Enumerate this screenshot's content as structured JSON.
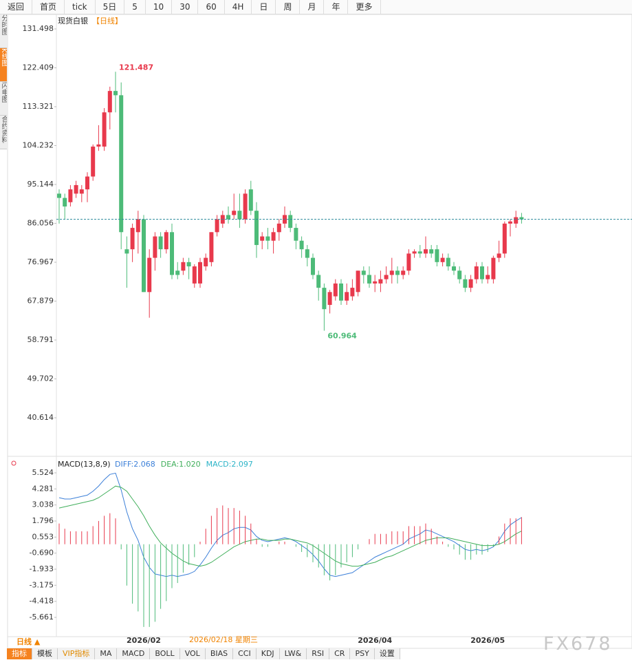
{
  "toolbar": [
    "返回",
    "首页",
    "tick",
    "5日",
    "5",
    "10",
    "30",
    "60",
    "4H",
    "日",
    "周",
    "月",
    "年",
    "更多"
  ],
  "side_tabs": [
    "分时图",
    "K线图",
    "闪电图",
    "合约资料"
  ],
  "chart_data": [
    {
      "type": "candlestick",
      "title": "现货白银",
      "subtitle": "【日线】",
      "categories": [
        null,
        null,
        null,
        null,
        null,
        null,
        null,
        null,
        null,
        null,
        null,
        null,
        null,
        null,
        null,
        "2026/02",
        null,
        null,
        null,
        null,
        null,
        null,
        null,
        null,
        null,
        null,
        null,
        null,
        null,
        null,
        null,
        null,
        null,
        null,
        null,
        null,
        null,
        null,
        null,
        null,
        null,
        null,
        null,
        null,
        null,
        null,
        null,
        null,
        null,
        null,
        null,
        null,
        null,
        null,
        null,
        null,
        "2026/04",
        null,
        null,
        null,
        null,
        null,
        null,
        null,
        null,
        null,
        null,
        null,
        null,
        null,
        null,
        null,
        null,
        null,
        null,
        null,
        "2026/05",
        null,
        null,
        null,
        null,
        null,
        null
      ],
      "open": [
        93,
        92,
        91,
        93,
        93,
        94,
        97,
        104,
        104,
        112,
        117,
        116,
        80,
        80,
        84,
        87,
        70,
        78,
        83,
        80,
        84,
        75,
        75,
        77,
        72,
        72,
        76,
        77,
        84,
        86,
        88,
        88,
        89,
        87,
        94,
        89,
        82,
        83,
        82,
        84,
        86,
        88,
        85,
        82,
        80,
        78,
        74,
        71,
        67,
        69,
        72,
        68,
        69,
        70,
        75,
        74,
        72,
        72,
        73,
        74,
        75,
        74,
        75,
        79,
        79.5,
        79,
        80,
        80,
        77,
        78,
        76,
        75,
        73,
        71,
        73,
        76,
        73,
        73,
        78,
        79,
        86,
        86,
        87.5
      ],
      "high": [
        94,
        93,
        95,
        96,
        95,
        98,
        104.5,
        109,
        113,
        118,
        121.487,
        119,
        83,
        86,
        89,
        88,
        80,
        84,
        84,
        84.5,
        86,
        77,
        78,
        78,
        76.5,
        78,
        79,
        84,
        88,
        89,
        90,
        93,
        93,
        94,
        96,
        91,
        84,
        85,
        85,
        87,
        90,
        89,
        86,
        83,
        81,
        79,
        75,
        72,
        70.5,
        73,
        73,
        72,
        73,
        75,
        76,
        76,
        74,
        75,
        76,
        78,
        76,
        76,
        80,
        80,
        81,
        83,
        81,
        81,
        79,
        79,
        77,
        76,
        74,
        74,
        77,
        77,
        76,
        78.5,
        82,
        86.5,
        87,
        89,
        88.5
      ],
      "low": [
        86,
        87,
        90,
        92,
        91,
        91,
        96,
        103,
        103,
        108,
        112,
        80,
        71,
        77,
        79,
        70,
        64,
        75,
        78,
        79,
        73,
        73,
        74,
        73,
        71,
        71,
        75,
        76,
        83,
        85,
        86,
        87,
        85,
        86,
        88,
        78,
        80,
        80,
        79,
        82,
        85,
        84,
        80,
        78,
        76,
        73,
        68,
        60.964,
        65,
        68,
        67,
        67,
        68,
        69,
        72,
        71,
        70,
        70,
        72,
        72,
        72,
        73,
        74,
        78,
        78,
        78,
        78,
        76,
        76,
        75,
        74,
        72,
        70,
        70,
        72,
        72,
        72,
        72,
        77,
        78,
        83,
        85,
        86
      ],
      "close": [
        92,
        90,
        94,
        95,
        94,
        97,
        104,
        104.5,
        112,
        117,
        116,
        84,
        79,
        85,
        87,
        70,
        78,
        83,
        80,
        84,
        74,
        74,
        77,
        76,
        76,
        77,
        78,
        84,
        87,
        88,
        87,
        89,
        87,
        93,
        89,
        81,
        83,
        82,
        84,
        86,
        88,
        85,
        82,
        80,
        78,
        74,
        71,
        66,
        70,
        72,
        68,
        70,
        71,
        75,
        74,
        72,
        72.5,
        73,
        74,
        75,
        74,
        75,
        79,
        79.5,
        79,
        80,
        79,
        77,
        78,
        76,
        75,
        73,
        71,
        73,
        76,
        73,
        74,
        78,
        79,
        86,
        86.5,
        87.5,
        87
      ],
      "up_color": "#e8394c",
      "down_color": "#4dbb78",
      "ylim": [
        32.09,
        135.04
      ],
      "yticks": [
        131.498,
        122.409,
        113.321,
        104.232,
        95.144,
        86.056,
        76.967,
        67.879,
        58.791,
        49.702,
        40.614
      ]
    },
    {
      "type": "macd",
      "title": "MACD(13,8,9)",
      "series": [
        {
          "legend": "DIFF:2.068",
          "color": "#3b7fd8",
          "values": [
            3.6,
            3.5,
            3.5,
            3.6,
            3.7,
            3.8,
            4.1,
            4.5,
            5.0,
            5.4,
            5.5,
            4.2,
            2.5,
            1.2,
            0.3,
            -1.0,
            -1.8,
            -2.3,
            -2.4,
            -2.5,
            -2.4,
            -2.5,
            -2.4,
            -2.3,
            -2.1,
            -1.6,
            -1.0,
            -0.3,
            0.3,
            0.7,
            0.9,
            1.2,
            1.3,
            1.3,
            1.1,
            0.6,
            0.3,
            0.2,
            0.3,
            0.4,
            0.5,
            0.4,
            0.2,
            -0.1,
            -0.4,
            -0.8,
            -1.3,
            -1.9,
            -2.4,
            -2.5,
            -2.4,
            -2.3,
            -2.2,
            -1.9,
            -1.6,
            -1.3,
            -1.0,
            -0.8,
            -0.6,
            -0.4,
            -0.2,
            0.0,
            0.4,
            0.6,
            0.8,
            1.1,
            1.0,
            0.8,
            0.6,
            0.4,
            0.2,
            -0.1,
            -0.4,
            -0.5,
            -0.4,
            -0.5,
            -0.4,
            -0.2,
            0.3,
            1.0,
            1.5,
            1.8,
            2.068
          ]
        },
        {
          "legend": "DEA:1.020",
          "color": "#3fae5a",
          "values": [
            2.8,
            2.9,
            3.0,
            3.1,
            3.2,
            3.3,
            3.4,
            3.6,
            3.9,
            4.2,
            4.5,
            4.4,
            4.1,
            3.5,
            2.9,
            2.2,
            1.4,
            0.7,
            0.1,
            -0.3,
            -0.7,
            -1.0,
            -1.3,
            -1.5,
            -1.6,
            -1.7,
            -1.6,
            -1.4,
            -1.1,
            -0.8,
            -0.5,
            -0.2,
            0.0,
            0.2,
            0.3,
            0.4,
            0.4,
            0.3,
            0.3,
            0.3,
            0.4,
            0.4,
            0.3,
            0.2,
            0.1,
            -0.1,
            -0.4,
            -0.7,
            -1.0,
            -1.3,
            -1.5,
            -1.6,
            -1.7,
            -1.7,
            -1.6,
            -1.5,
            -1.4,
            -1.2,
            -1.0,
            -0.9,
            -0.7,
            -0.5,
            -0.3,
            -0.1,
            0.1,
            0.3,
            0.4,
            0.5,
            0.5,
            0.5,
            0.4,
            0.3,
            0.2,
            0.1,
            0.0,
            -0.1,
            -0.1,
            -0.1,
            0.0,
            0.2,
            0.5,
            0.8,
            1.02
          ]
        },
        {
          "legend": "MACD:2.097",
          "color": "#2bb3c7",
          "up_color": "#e8394c",
          "down_color": "#4dbb78",
          "histogram": true,
          "values": [
            1.6,
            1.2,
            1.0,
            1.0,
            1.0,
            1.0,
            1.4,
            1.8,
            2.2,
            2.4,
            2.0,
            -0.4,
            -3.2,
            -4.6,
            -5.2,
            -6.4,
            -6.4,
            -6.0,
            -5.0,
            -4.4,
            -3.4,
            -3.0,
            -2.2,
            -1.6,
            -1.0,
            0.2,
            1.2,
            2.2,
            2.8,
            3.0,
            2.8,
            2.8,
            2.6,
            2.2,
            1.6,
            0.4,
            -0.2,
            -0.2,
            0.0,
            0.2,
            0.2,
            0.0,
            -0.2,
            -0.6,
            -1.0,
            -1.4,
            -1.8,
            -2.4,
            -2.8,
            -2.4,
            -1.8,
            -1.4,
            -1.0,
            -0.4,
            0.0,
            0.4,
            0.8,
            0.8,
            0.8,
            1.0,
            1.0,
            1.0,
            1.4,
            1.4,
            1.4,
            1.6,
            1.2,
            0.6,
            0.2,
            -0.2,
            -0.4,
            -0.8,
            -1.2,
            -1.2,
            -0.8,
            -0.8,
            -0.6,
            -0.2,
            0.6,
            1.6,
            2.0,
            2.0,
            2.097
          ]
        }
      ],
      "ylim": [
        -7.152,
        6.589
      ],
      "yticks": [
        5.524,
        4.281,
        3.038,
        1.796,
        0.553,
        {
          "value": -0.69,
          "label": "-0.690"
        },
        -1.933,
        -3.175,
        -4.418,
        -5.661
      ]
    }
  ],
  "footer": {
    "period": "日线 ▲",
    "cursor_date": "2026/02/18 星期三",
    "tabs": [
      "指标",
      "模板",
      "VIP指标",
      "MA",
      "MACD",
      "BOLL",
      "VOL",
      "BIAS",
      "CCI",
      "KDJ",
      "LW&",
      "RSI",
      "CR",
      "PSY",
      "设置"
    ]
  },
  "watermark": "FX678"
}
